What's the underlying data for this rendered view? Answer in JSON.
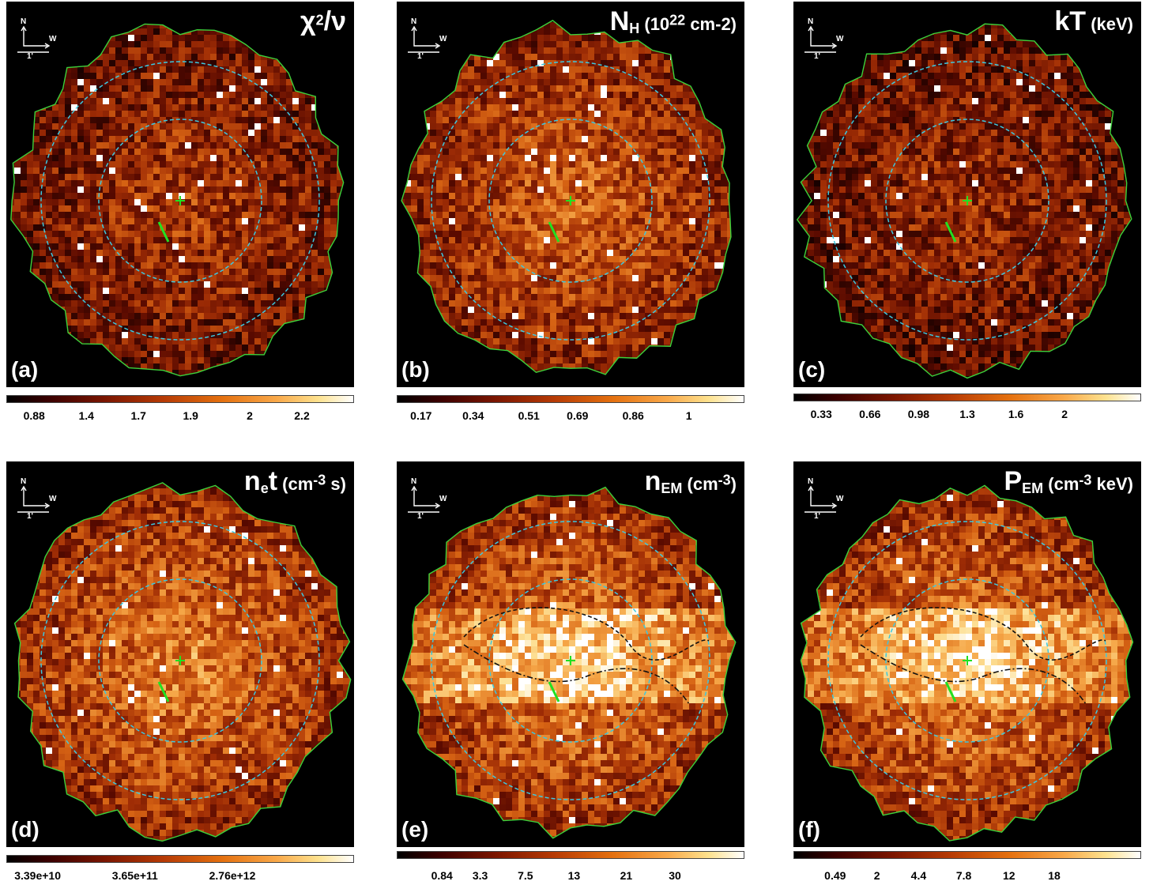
{
  "compass": {
    "north": "N",
    "west": "W",
    "scale": "1'"
  },
  "panels": [
    {
      "label": "(a)",
      "title_main": "χ",
      "title_sup": "2",
      "title_tail": "/ν",
      "title_sub": "",
      "title_unit": "",
      "unit_sup": "",
      "unit_tail": "",
      "ticks": [
        "0.88",
        "1.4",
        "1.7",
        "1.9",
        "2",
        "2.2"
      ],
      "seed": 11,
      "bright": 0.45
    },
    {
      "label": "(b)",
      "title_main": "N",
      "title_sup": "",
      "title_tail": "",
      "title_sub": "H",
      "title_unit": " (10",
      "unit_sup": "22",
      "unit_tail": " cm-2)",
      "ticks": [
        "0.17",
        "0.34",
        "0.51",
        "0.69",
        "0.86",
        "1"
      ],
      "seed": 23,
      "bright": 0.6
    },
    {
      "label": "(c)",
      "title_main": "kT",
      "title_sup": "",
      "title_tail": "",
      "title_sub": "",
      "title_unit": " (keV)",
      "unit_sup": "",
      "unit_tail": "",
      "ticks": [
        "0.33",
        "0.66",
        "0.98",
        "1.3",
        "1.6",
        "2"
      ],
      "seed": 37,
      "bright": 0.4
    },
    {
      "label": "(d)",
      "title_main": "n",
      "title_sup": "",
      "title_tail": "t",
      "title_sub": "e",
      "title_unit": " (cm",
      "unit_sup": "-3",
      "unit_tail": " s)",
      "ticks": [
        "3.39e+10",
        "3.65e+11",
        "2.76e+12"
      ],
      "seed": 41,
      "bright": 0.7
    },
    {
      "label": "(e)",
      "title_main": "n",
      "title_sup": "",
      "title_tail": "",
      "title_sub": "EM",
      "title_unit": " (cm",
      "unit_sup": "-3",
      "unit_tail": ")",
      "ticks": [
        "0.84",
        "3.3",
        "7.5",
        "13",
        "21",
        "30"
      ],
      "seed": 53,
      "bright": 0.72
    },
    {
      "label": "(f)",
      "title_main": "P",
      "title_sup": "",
      "title_tail": "",
      "title_sub": "EM",
      "title_unit": " (cm",
      "unit_sup": "-3",
      "unit_tail": " keV)",
      "ticks": [
        "0.49",
        "2",
        "4.4",
        "7.8",
        "12",
        "18"
      ],
      "seed": 67,
      "bright": 0.72
    }
  ]
}
